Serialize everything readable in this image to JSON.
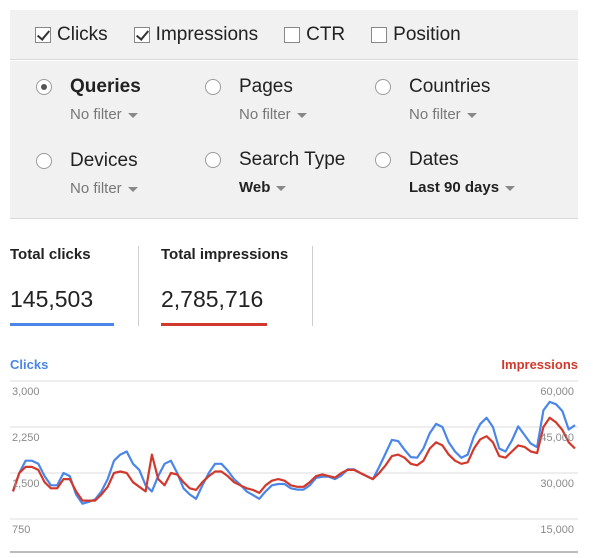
{
  "metrics": [
    {
      "label": "Clicks",
      "checked": true
    },
    {
      "label": "Impressions",
      "checked": true
    },
    {
      "label": "CTR",
      "checked": false
    },
    {
      "label": "Position",
      "checked": false
    }
  ],
  "dimensions": [
    {
      "label": "Queries",
      "filter": "No filter",
      "selected": true
    },
    {
      "label": "Pages",
      "filter": "No filter",
      "selected": false
    },
    {
      "label": "Countries",
      "filter": "No filter",
      "selected": false
    },
    {
      "label": "Devices",
      "filter": "No filter",
      "selected": false
    },
    {
      "label": "Search Type",
      "filter": "Web",
      "selected": false
    },
    {
      "label": "Dates",
      "filter": "Last 90 days",
      "selected": false
    }
  ],
  "totals": {
    "clicks": {
      "label": "Total clicks",
      "value": "145,503",
      "color": "#4a86e8"
    },
    "impressions": {
      "label": "Total impressions",
      "value": "2,785,716",
      "color": "#d0392c"
    }
  },
  "chart_data": {
    "type": "line",
    "x": [
      1,
      2,
      3,
      4,
      5,
      6,
      7,
      8,
      9,
      10,
      11,
      12,
      13,
      14,
      15,
      16,
      17,
      18,
      19,
      20,
      21,
      22,
      23,
      24,
      25,
      26,
      27,
      28,
      29,
      30,
      31,
      32,
      33,
      34,
      35,
      36,
      37,
      38,
      39,
      40,
      41,
      42,
      43,
      44,
      45,
      46,
      47,
      48,
      49,
      50,
      51,
      52,
      53,
      54,
      55,
      56,
      57,
      58,
      59,
      60,
      61,
      62,
      63,
      64,
      65,
      66,
      67,
      68,
      69,
      70,
      71,
      72,
      73,
      74,
      75,
      76,
      77,
      78,
      79,
      80,
      81,
      82,
      83,
      84,
      85,
      86,
      87,
      88,
      89,
      90
    ],
    "y_left": {
      "label": "Clicks",
      "ticks": [
        "3,000",
        "2,250",
        "1,500",
        "750"
      ],
      "ylim": [
        750,
        3000
      ],
      "color": "#4a86e8"
    },
    "y_right": {
      "label": "Impressions",
      "ticks": [
        "60,000",
        "45,000",
        "30,000",
        "15,000"
      ],
      "ylim": [
        15000,
        60000
      ],
      "color": "#d0392c"
    },
    "series": [
      {
        "name": "Clicks",
        "axis": "left",
        "color": "#4a86e8",
        "values": [
          1200,
          1500,
          1700,
          1700,
          1650,
          1450,
          1300,
          1300,
          1500,
          1450,
          1150,
          1000,
          1030,
          1070,
          1200,
          1400,
          1700,
          1800,
          1850,
          1650,
          1550,
          1300,
          1200,
          1450,
          1650,
          1700,
          1500,
          1250,
          1150,
          1080,
          1300,
          1500,
          1650,
          1650,
          1540,
          1400,
          1310,
          1200,
          1140,
          1080,
          1200,
          1300,
          1320,
          1320,
          1250,
          1230,
          1230,
          1300,
          1420,
          1440,
          1440,
          1400,
          1460,
          1560,
          1560,
          1500,
          1450,
          1400,
          1600,
          1820,
          2040,
          2020,
          1880,
          1760,
          1750,
          1900,
          2150,
          2300,
          2250,
          2000,
          1850,
          1750,
          1800,
          2100,
          2300,
          2400,
          2250,
          1900,
          1850,
          2030,
          2260,
          2120,
          1980,
          1920,
          2520,
          2660,
          2620,
          2510,
          2210,
          2280
        ]
      },
      {
        "name": "Impressions",
        "axis": "right",
        "color": "#d0392c",
        "values": [
          24000,
          30000,
          32000,
          32000,
          31000,
          27000,
          25000,
          25000,
          28000,
          28000,
          24000,
          21000,
          21000,
          21000,
          23000,
          25500,
          30000,
          30500,
          30000,
          27000,
          25500,
          24000,
          36000,
          28000,
          26000,
          30000,
          29500,
          27000,
          25000,
          24500,
          27000,
          29000,
          30500,
          30500,
          29000,
          27000,
          26000,
          25000,
          24500,
          23500,
          26000,
          27500,
          28000,
          27500,
          26000,
          25500,
          25500,
          27000,
          29000,
          29500,
          29000,
          28500,
          30000,
          31000,
          31000,
          30000,
          29000,
          28000,
          30000,
          32500,
          35500,
          36000,
          35000,
          33000,
          32500,
          34000,
          38000,
          40000,
          39000,
          36000,
          34000,
          33000,
          33500,
          38000,
          41000,
          42000,
          40000,
          35500,
          35000,
          37000,
          39000,
          38500,
          37000,
          36500,
          45000,
          48000,
          46500,
          44000,
          40000,
          38000
        ]
      }
    ],
    "grid": true
  }
}
